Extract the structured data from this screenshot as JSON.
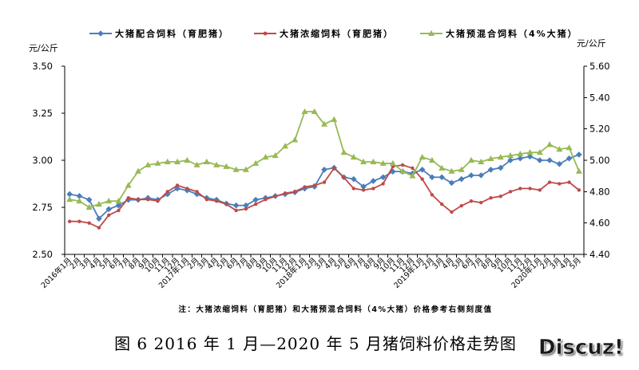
{
  "chart_data": {
    "type": "line",
    "legend": "top",
    "grid": false,
    "categories": [
      "2016年1月",
      "2月",
      "3月",
      "4月",
      "5月",
      "6月",
      "7月",
      "8月",
      "9月",
      "10月",
      "11月",
      "12月",
      "2017年1月",
      "2月",
      "3月",
      "4月",
      "5月",
      "6月",
      "7月",
      "8月",
      "9月",
      "10月",
      "11月",
      "12月",
      "2018年1月",
      "2月",
      "3月",
      "4月",
      "5月",
      "6月",
      "7月",
      "8月",
      "9月",
      "10月",
      "11月",
      "12月",
      "2019年1月",
      "2月",
      "3月",
      "4月",
      "5月",
      "6月",
      "7月",
      "8月",
      "9月",
      "10月",
      "11月",
      "12月",
      "2020年1月",
      "2月",
      "3月",
      "4月",
      "5月"
    ],
    "series": [
      {
        "name": "大猪配合饲料（育肥猪）",
        "axis": "left",
        "color": "#4A7EBB",
        "marker": "diamond",
        "values": [
          2.82,
          2.81,
          2.79,
          2.69,
          2.74,
          2.76,
          2.79,
          2.79,
          2.8,
          2.79,
          2.82,
          2.85,
          2.84,
          2.82,
          2.8,
          2.79,
          2.77,
          2.76,
          2.76,
          2.79,
          2.8,
          2.81,
          2.82,
          2.83,
          2.85,
          2.86,
          2.95,
          2.96,
          2.91,
          2.9,
          2.86,
          2.89,
          2.91,
          2.94,
          2.94,
          2.93,
          2.95,
          2.91,
          2.91,
          2.88,
          2.9,
          2.92,
          2.92,
          2.95,
          2.96,
          3.0,
          3.01,
          3.02,
          3.0,
          3.0,
          2.98,
          3.01,
          3.03
        ]
      },
      {
        "name": "大猪浓缩饲料（育肥猪）",
        "axis": "right",
        "color": "#BE4B48",
        "marker": "circle",
        "values": [
          4.61,
          4.61,
          4.6,
          4.57,
          4.65,
          4.68,
          4.76,
          4.75,
          4.75,
          4.74,
          4.8,
          4.84,
          4.82,
          4.8,
          4.75,
          4.74,
          4.72,
          4.68,
          4.69,
          4.72,
          4.75,
          4.77,
          4.79,
          4.8,
          4.83,
          4.84,
          4.86,
          4.95,
          4.89,
          4.82,
          4.81,
          4.82,
          4.85,
          4.96,
          4.97,
          4.95,
          4.88,
          4.78,
          4.72,
          4.67,
          4.71,
          4.74,
          4.73,
          4.76,
          4.77,
          4.8,
          4.82,
          4.82,
          4.81,
          4.86,
          4.85,
          4.86,
          4.81
        ]
      },
      {
        "name": "大猪预混合饲料（4%大猪）",
        "axis": "right",
        "color": "#98B954",
        "marker": "triangle",
        "values": [
          4.75,
          4.74,
          4.7,
          4.72,
          4.74,
          4.74,
          4.84,
          4.93,
          4.97,
          4.98,
          4.99,
          4.99,
          5.0,
          4.97,
          4.99,
          4.97,
          4.96,
          4.94,
          4.94,
          4.98,
          5.02,
          5.03,
          5.09,
          5.13,
          5.31,
          5.31,
          5.23,
          5.26,
          5.05,
          5.02,
          4.99,
          4.99,
          4.98,
          4.98,
          4.93,
          4.9,
          5.02,
          5.0,
          4.95,
          4.93,
          4.94,
          5.0,
          4.99,
          5.01,
          5.02,
          5.03,
          5.04,
          5.05,
          5.05,
          5.1,
          5.07,
          5.08,
          4.93
        ]
      }
    ],
    "y_left": {
      "label": "元/公斤",
      "range": [
        2.5,
        3.5
      ],
      "ticks": [
        "2.50",
        "2.75",
        "3.00",
        "3.25",
        "3.50"
      ]
    },
    "y_right": {
      "label": "元/公斤",
      "range": [
        4.4,
        5.6
      ],
      "ticks": [
        "4.40",
        "4.60",
        "4.80",
        "5.00",
        "5.20",
        "5.40",
        "5.60"
      ]
    },
    "note": "注：大猪浓缩饲料（育肥猪）和大猪预混合饲料（4%大猪）价格参考右侧刻度值"
  },
  "caption": "图 6 2016 年 1 月—2020 年 5 月猪饲料价格走势图",
  "watermark": "Discuz!"
}
